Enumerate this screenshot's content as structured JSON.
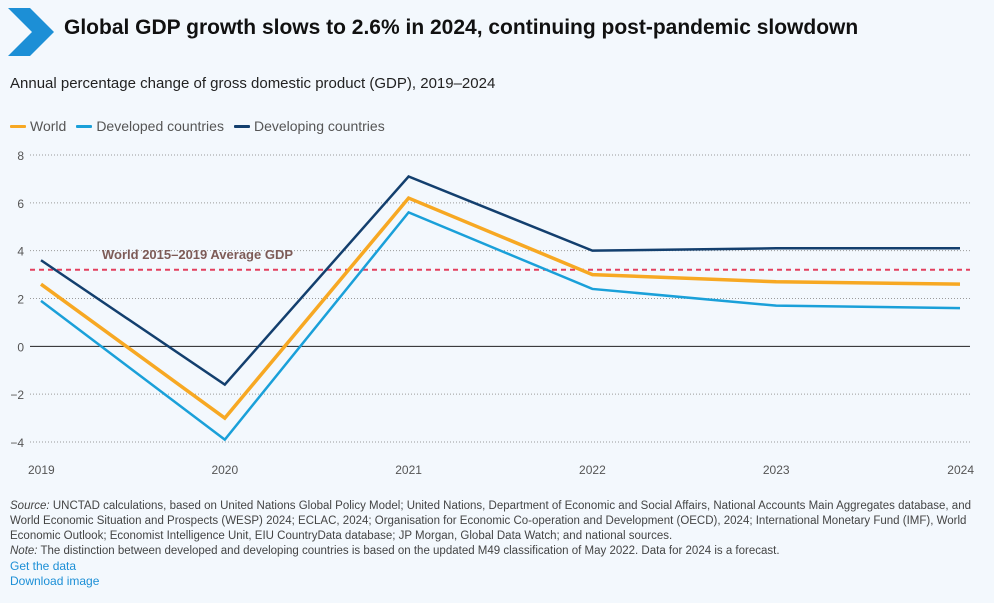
{
  "header": {
    "title": "Global GDP growth slows to 2.6% in 2024, continuing post-pandemic slowdown",
    "icon": "chevron-right-icon"
  },
  "subtitle": "Annual percentage change of gross domestic product (GDP), 2019–2024",
  "legend": [
    {
      "label": "World",
      "color": "#f7a823"
    },
    {
      "label": "Developed countries",
      "color": "#1aa0d9"
    },
    {
      "label": "Developing countries",
      "color": "#133f6e"
    }
  ],
  "chart_data": {
    "type": "line",
    "x": [
      "2019",
      "2020",
      "2021",
      "2022",
      "2023",
      "2024"
    ],
    "series": [
      {
        "name": "World",
        "color": "#f7a823",
        "values": [
          2.6,
          -3.0,
          6.2,
          3.0,
          2.7,
          2.6
        ]
      },
      {
        "name": "Developed countries",
        "color": "#1aa0d9",
        "values": [
          1.9,
          -3.9,
          5.6,
          2.4,
          1.7,
          1.6
        ]
      },
      {
        "name": "Developing countries",
        "color": "#133f6e",
        "values": [
          3.6,
          -1.6,
          7.1,
          4.0,
          4.1,
          4.1
        ]
      }
    ],
    "reference_line": {
      "label": "World 2015–2019 Average GDP",
      "value": 3.2,
      "color": "#e3405e"
    },
    "ylim": [
      -4,
      8
    ],
    "yticks": [
      -4,
      -2,
      0,
      2,
      4,
      6,
      8
    ],
    "ytick_labels": [
      "−4",
      "−2",
      "0",
      "2",
      "4",
      "6",
      "8"
    ],
    "grid": true
  },
  "notes": {
    "source_label": "Source:",
    "source_text": " UNCTAD calculations, based on United Nations Global Policy Model; United Nations, Department of Economic and Social Affairs, National Accounts Main Aggregates database, and World Economic Situation and Prospects (WESP) 2024; ECLAC, 2024; Organisation for Economic Co-operation and Development (OECD), 2024; International Monetary Fund (IMF), World Economic Outlook; Economist Intelligence Unit, EIU CountryData database; JP Morgan, Global Data Watch; and national sources.",
    "note_label": "Note:",
    "note_text": " The distinction between developed and developing countries is based on the updated M49 classification of May 2022. Data for 2024 is a forecast."
  },
  "links": {
    "get_data": "Get the data",
    "download_image": "Download image"
  }
}
